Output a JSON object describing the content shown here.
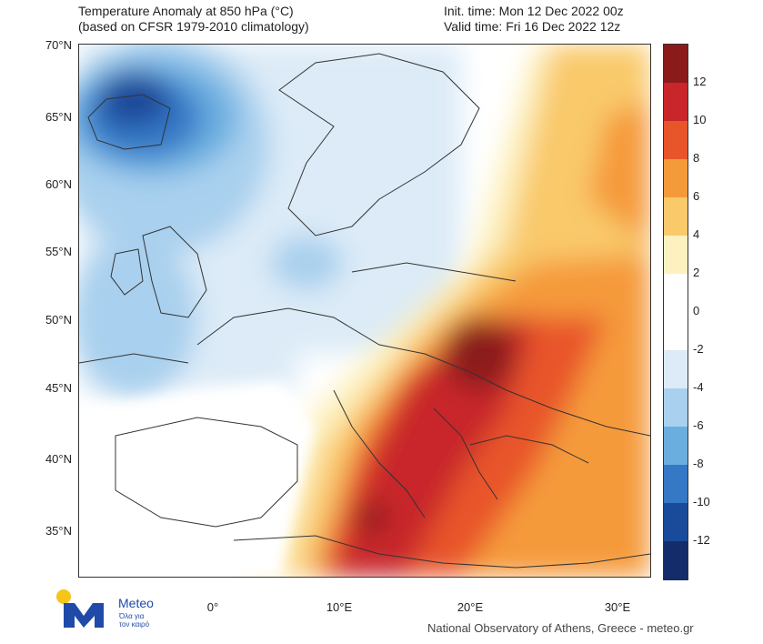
{
  "title": {
    "left_line1": "Temperature Anomaly at 850 hPa (°C)",
    "left_line2": "(based on CFSR 1979-2010 climatology)",
    "right_line1": "Init. time: Mon 12 Dec 2022 00z",
    "right_line2": "Valid time: Fri 16 Dec 2022 12z"
  },
  "axes": {
    "lat_labels": [
      "70°N",
      "65°N",
      "60°N",
      "55°N",
      "50°N",
      "45°N",
      "40°N",
      "35°N"
    ],
    "lon_labels": [
      "0°",
      "10°E",
      "20°E",
      "30°E"
    ]
  },
  "colorbar": {
    "ticks": [
      "12",
      "10",
      "8",
      "6",
      "4",
      "2",
      "0",
      "-2",
      "-4",
      "-6",
      "-8",
      "-10",
      "-12"
    ],
    "colors": [
      "#8b1a1a",
      "#c8262a",
      "#e8552b",
      "#f59a3a",
      "#f9c96a",
      "#fdf1c0",
      "#ffffff",
      "#ffffff",
      "#dcebf7",
      "#a9d0ee",
      "#6aaee0",
      "#3578c6",
      "#1a4a9a",
      "#142d6a"
    ]
  },
  "logo": {
    "brand": "Meteo",
    "tagline_line1": "Όλα για",
    "tagline_line2": "τον καιρό"
  },
  "credit": "National Observatory of Athens, Greece - meteo.gr"
}
